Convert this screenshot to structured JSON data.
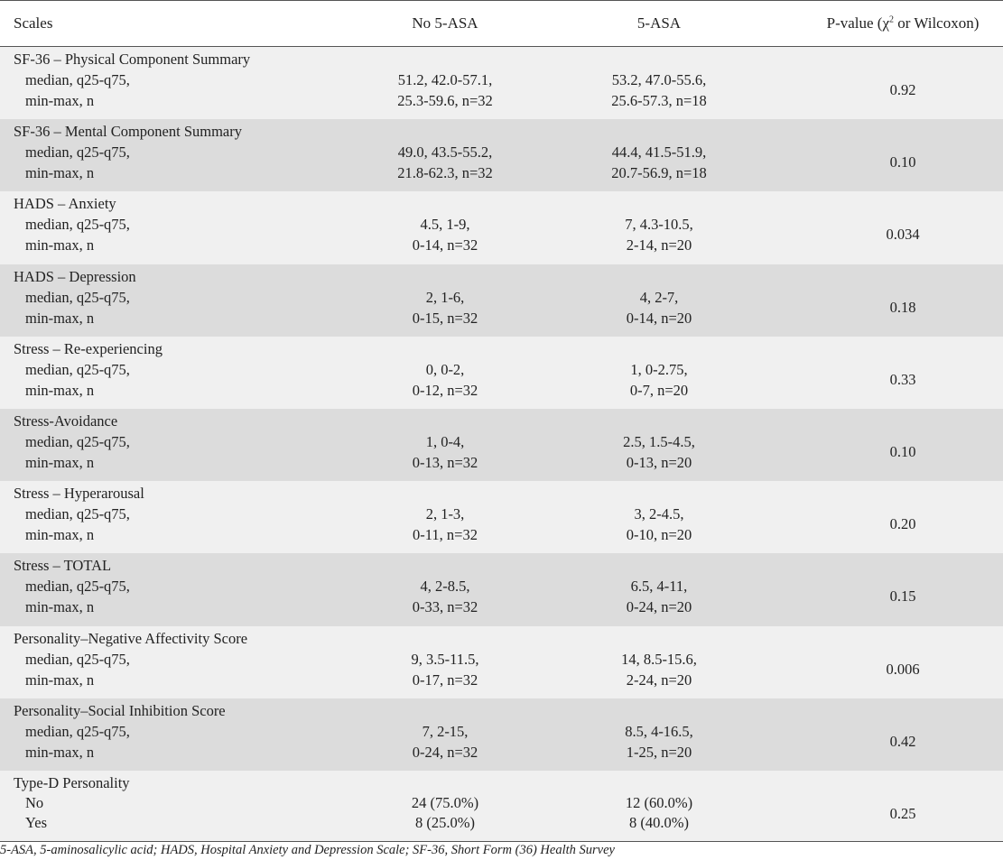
{
  "header": {
    "col_scales": "Scales",
    "col_no_asa": "No 5-ASA",
    "col_asa": "5-ASA",
    "col_pvalue_prefix": "P-value (χ",
    "col_pvalue_sup": "2",
    "col_pvalue_suffix": " or Wilcoxon)"
  },
  "rows": [
    {
      "name": "SF-36 – Physical Component Summary",
      "sub1": "median, q25-q75,",
      "sub2": "min-max, n",
      "no1": "51.2, 42.0-57.1,",
      "no2": "25.3-59.6, n=32",
      "yes1": "53.2, 47.0-55.6,",
      "yes2": "25.6-57.3, n=18",
      "p": "0.92"
    },
    {
      "name": "SF-36 – Mental Component Summary",
      "sub1": "median, q25-q75,",
      "sub2": "min-max, n",
      "no1": "49.0, 43.5-55.2,",
      "no2": "21.8-62.3, n=32",
      "yes1": "44.4, 41.5-51.9,",
      "yes2": "20.7-56.9, n=18",
      "p": "0.10"
    },
    {
      "name": "HADS – Anxiety",
      "sub1": "median, q25-q75,",
      "sub2": "min-max, n",
      "no1": "4.5, 1-9,",
      "no2": "0-14, n=32",
      "yes1": "7, 4.3-10.5,",
      "yes2": "2-14, n=20",
      "p": "0.034"
    },
    {
      "name": "HADS – Depression",
      "sub1": "median, q25-q75,",
      "sub2": "min-max, n",
      "no1": "2, 1-6,",
      "no2": "0-15, n=32",
      "yes1": "4, 2-7,",
      "yes2": "0-14, n=20",
      "p": "0.18"
    },
    {
      "name": "Stress – Re-experiencing",
      "sub1": "median, q25-q75,",
      "sub2": "min-max, n",
      "no1": "0, 0-2,",
      "no2": "0-12, n=32",
      "yes1": "1, 0-2.75,",
      "yes2": "0-7, n=20",
      "p": "0.33"
    },
    {
      "name": "Stress-Avoidance",
      "sub1": "median, q25-q75,",
      "sub2": "min-max, n",
      "no1": "1, 0-4,",
      "no2": "0-13, n=32",
      "yes1": "2.5, 1.5-4.5,",
      "yes2": "0-13, n=20",
      "p": "0.10"
    },
    {
      "name": "Stress – Hyperarousal",
      "sub1": "median, q25-q75,",
      "sub2": "min-max, n",
      "no1": "2, 1-3,",
      "no2": "0-11, n=32",
      "yes1": "3, 2-4.5,",
      "yes2": "0-10, n=20",
      "p": "0.20"
    },
    {
      "name": "Stress – TOTAL",
      "sub1": "median, q25-q75,",
      "sub2": "min-max, n",
      "no1": "4, 2-8.5,",
      "no2": "0-33, n=32",
      "yes1": "6.5, 4-11,",
      "yes2": "0-24, n=20",
      "p": "0.15"
    },
    {
      "name": "Personality–Negative Affectivity Score",
      "sub1": "median, q25-q75,",
      "sub2": "min-max, n",
      "no1": "9, 3.5-11.5,",
      "no2": "0-17, n=32",
      "yes1": "14, 8.5-15.6,",
      "yes2": "2-24, n=20",
      "p": "0.006"
    },
    {
      "name": "Personality–Social Inhibition Score",
      "sub1": "median, q25-q75,",
      "sub2": "min-max, n",
      "no1": "7, 2-15,",
      "no2": "0-24, n=32",
      "yes1": "8.5, 4-16.5,",
      "yes2": "1-25, n=20",
      "p": "0.42"
    },
    {
      "name": "Type-D Personality",
      "sub1": "No",
      "sub2": "Yes",
      "no1": "24 (75.0%)",
      "no2": "8 (25.0%)",
      "yes1": "12 (60.0%)",
      "yes2": "8 (40.0%)",
      "p": "0.25"
    }
  ],
  "footnote": "5-ASA, 5-aminosalicylic acid; HADS, Hospital Anxiety and Depression Scale; SF-36, Short Form (36) Health Survey"
}
